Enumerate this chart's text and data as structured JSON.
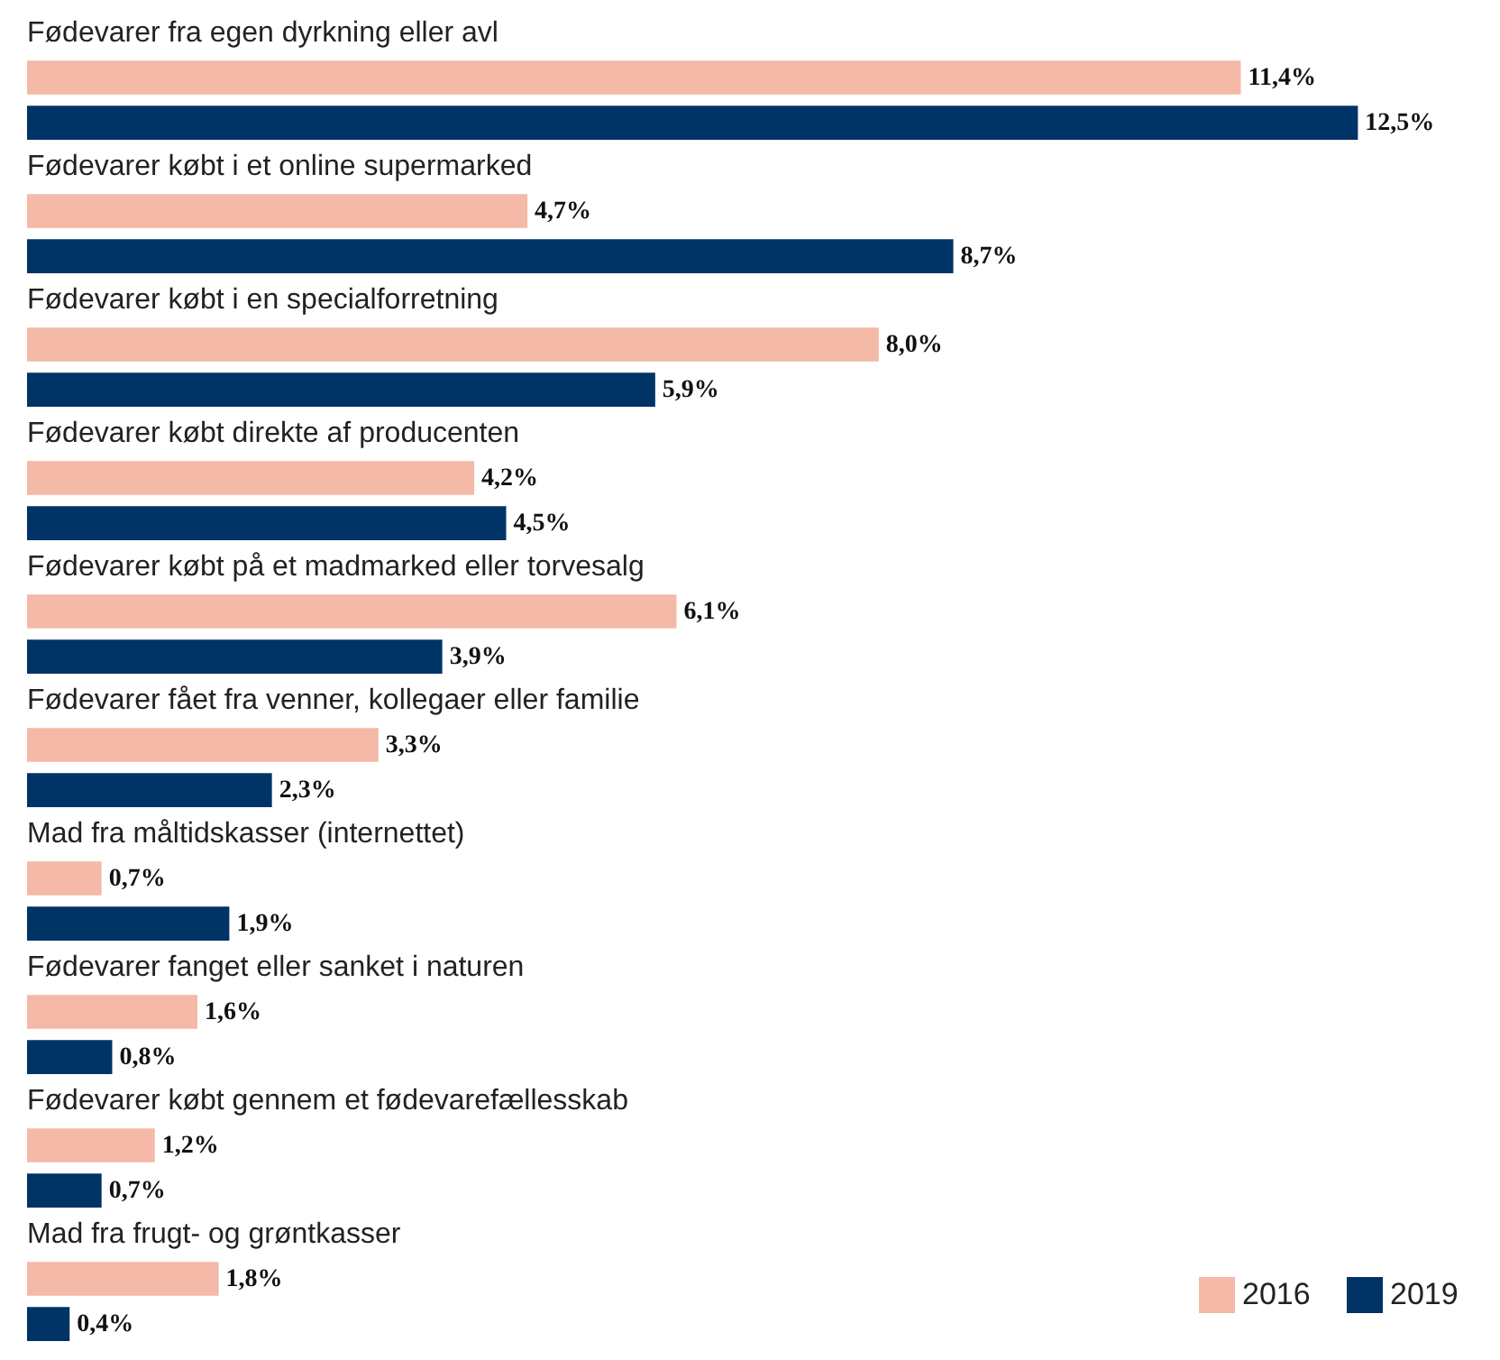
{
  "chart_data": {
    "type": "bar",
    "orientation": "horizontal",
    "categories": [
      "Fødevarer fra egen dyrkning eller avl",
      "Fødevarer købt i et online supermarked",
      "Fødevarer købt i en specialforretning",
      "Fødevarer købt direkte af producenten",
      "Fødevarer købt på et madmarked eller torvesalg",
      "Fødevarer fået fra venner, kollegaer eller familie",
      "Mad fra måltidskasser (internettet)",
      "Fødevarer fanget eller sanket i naturen",
      "Fødevarer købt gennem et fødevarefællesskab",
      "Mad fra frugt- og grøntkasser"
    ],
    "series": [
      {
        "name": "2016",
        "color": "#f4b9a7",
        "values": [
          11.4,
          4.7,
          8.0,
          4.2,
          6.1,
          3.3,
          0.7,
          1.6,
          1.2,
          1.8
        ],
        "value_labels": [
          "11,4%",
          "4,7%",
          "8,0%",
          "4,2%",
          "6,1%",
          "3,3%",
          "0,7%",
          "1,6%",
          "1,2%",
          "1,8%"
        ]
      },
      {
        "name": "2019",
        "color": "#003366",
        "values": [
          12.5,
          8.7,
          5.9,
          4.5,
          3.9,
          2.3,
          1.9,
          0.8,
          0.7,
          0.4
        ],
        "value_labels": [
          "12,5%",
          "8,7%",
          "5,9%",
          "4,5%",
          "3,9%",
          "2,3%",
          "1,9%",
          "0,8%",
          "0,7%",
          "0,4%"
        ]
      }
    ],
    "legend": "bottom right"
  }
}
